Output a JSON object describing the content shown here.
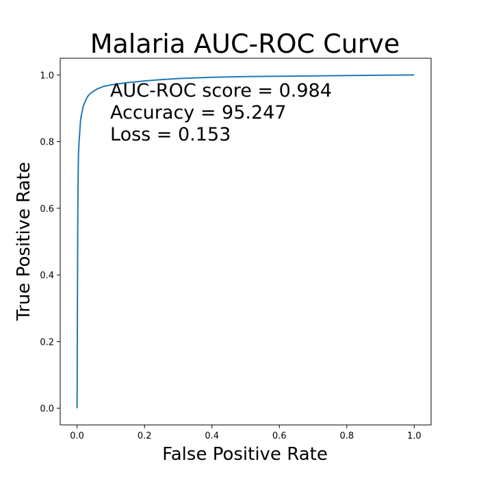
{
  "chart_data": {
    "type": "line",
    "title": "Malaria AUC-ROC Curve",
    "xlabel": "False Positive Rate",
    "ylabel": "True Positive Rate",
    "xlim": [
      -0.05,
      1.05
    ],
    "ylim": [
      -0.05,
      1.05
    ],
    "xticks": [
      0.0,
      0.2,
      0.4,
      0.6,
      0.8,
      1.0
    ],
    "yticks": [
      0.0,
      0.2,
      0.4,
      0.6,
      0.8,
      1.0
    ],
    "xtick_labels": [
      "0.0",
      "0.2",
      "0.4",
      "0.6",
      "0.8",
      "1.0"
    ],
    "ytick_labels": [
      "0.0",
      "0.2",
      "0.4",
      "0.6",
      "0.8",
      "1.0"
    ],
    "grid": false,
    "annotations": [
      "AUC-ROC score = 0.984",
      "Accuracy = 95.247",
      "Loss = 0.153"
    ],
    "series": [
      {
        "color": "#1f77b4",
        "x": [
          0.0,
          0.001,
          0.002,
          0.003,
          0.004,
          0.006,
          0.008,
          0.01,
          0.012,
          0.015,
          0.018,
          0.022,
          0.026,
          0.03,
          0.035,
          0.04,
          0.05,
          0.06,
          0.07,
          0.08,
          0.1,
          0.12,
          0.15,
          0.2,
          0.25,
          0.3,
          0.4,
          0.5,
          0.6,
          0.7,
          0.8,
          0.9,
          1.0
        ],
        "y": [
          0.0,
          0.3,
          0.55,
          0.68,
          0.76,
          0.8,
          0.83,
          0.86,
          0.875,
          0.89,
          0.905,
          0.915,
          0.925,
          0.933,
          0.94,
          0.945,
          0.952,
          0.958,
          0.962,
          0.966,
          0.97,
          0.973,
          0.977,
          0.982,
          0.986,
          0.989,
          0.993,
          0.995,
          0.996,
          0.997,
          0.998,
          0.999,
          1.0
        ]
      }
    ]
  }
}
